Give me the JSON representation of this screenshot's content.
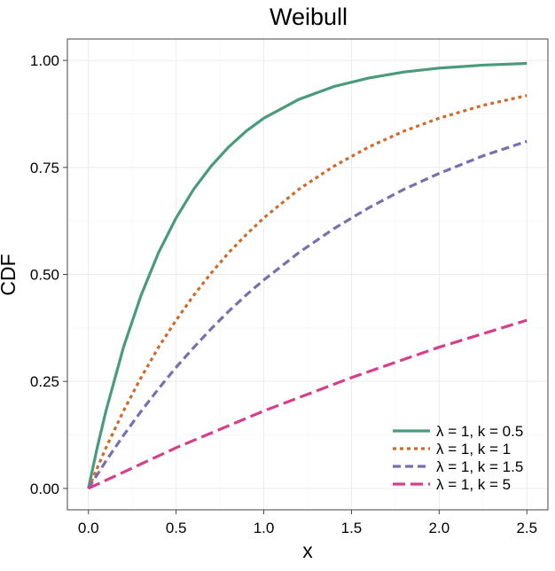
{
  "chart_data": {
    "type": "line",
    "title": "Weibull",
    "xlabel": "x",
    "ylabel": "CDF",
    "xlim": [
      -0.12,
      2.62
    ],
    "ylim": [
      -0.05,
      1.05
    ],
    "x_ticks": [
      0,
      0.5,
      1,
      1.5,
      2,
      2.5
    ],
    "x_tick_labels": [
      "0.0",
      "0.5",
      "1.0",
      "1.5",
      "2.0",
      "2.5"
    ],
    "y_ticks": [
      0,
      0.25,
      0.5,
      0.75,
      1
    ],
    "y_tick_labels": [
      "0.00",
      "0.25",
      "0.50",
      "0.75",
      "1.00"
    ],
    "grid": true,
    "legend_position": "bottom-right",
    "series": [
      {
        "name": "λ = 1, k = 0.5",
        "color": "#4a9a7c",
        "dash": "solid",
        "x": [
          0,
          0.05,
          0.1,
          0.2,
          0.3,
          0.4,
          0.5,
          0.6,
          0.7,
          0.8,
          0.9,
          1.0,
          1.2,
          1.4,
          1.6,
          1.8,
          2.0,
          2.25,
          2.5
        ],
        "y": [
          0,
          0.095,
          0.181,
          0.33,
          0.451,
          0.551,
          0.632,
          0.699,
          0.753,
          0.798,
          0.835,
          0.865,
          0.909,
          0.939,
          0.959,
          0.973,
          0.982,
          0.989,
          0.993
        ]
      },
      {
        "name": "λ = 1, k = 1",
        "color": "#d0692a",
        "dash": "dotted",
        "x": [
          0,
          0.1,
          0.2,
          0.3,
          0.4,
          0.5,
          0.6,
          0.7,
          0.8,
          0.9,
          1.0,
          1.2,
          1.4,
          1.6,
          1.8,
          2.0,
          2.25,
          2.5
        ],
        "y": [
          0,
          0.095,
          0.181,
          0.259,
          0.33,
          0.393,
          0.451,
          0.503,
          0.551,
          0.593,
          0.632,
          0.699,
          0.753,
          0.798,
          0.835,
          0.865,
          0.895,
          0.918
        ]
      },
      {
        "name": "λ = 1, k = 1.5",
        "color": "#7a6eb0",
        "dash": "dashed",
        "x": [
          0,
          0.1,
          0.2,
          0.3,
          0.4,
          0.5,
          0.6,
          0.7,
          0.8,
          0.9,
          1.0,
          1.2,
          1.4,
          1.6,
          1.8,
          2.0,
          2.25,
          2.5
        ],
        "y": [
          0,
          0.064,
          0.124,
          0.18,
          0.233,
          0.283,
          0.329,
          0.373,
          0.414,
          0.452,
          0.487,
          0.551,
          0.607,
          0.656,
          0.699,
          0.736,
          0.777,
          0.811
        ]
      },
      {
        "name": "λ = 1, k = 5",
        "color": "#d63f8a",
        "dash": "longdash",
        "x": [
          0,
          0.5,
          1.0,
          1.5,
          2.0,
          2.5
        ],
        "y": [
          0,
          0.095,
          0.181,
          0.259,
          0.33,
          0.393
        ]
      }
    ]
  }
}
